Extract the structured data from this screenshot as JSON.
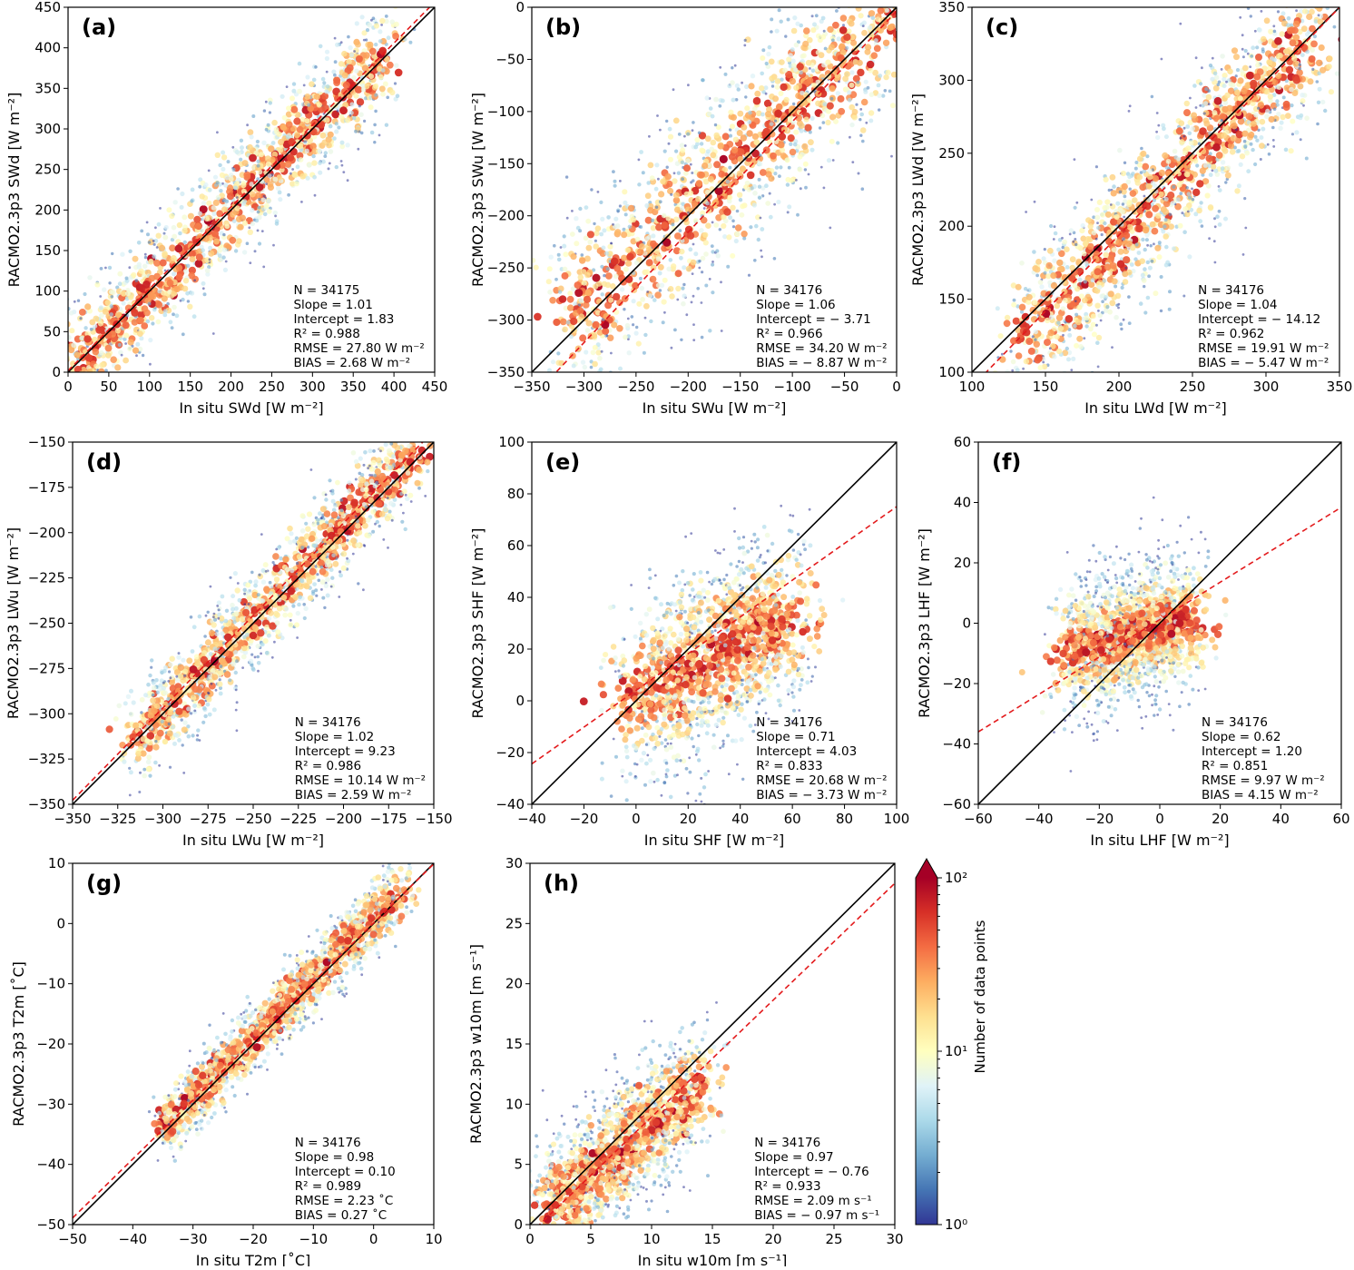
{
  "figure": {
    "colorbar": {
      "label": "Number of data points",
      "scale": "log",
      "min": 1,
      "max": 100,
      "tick_labels": [
        "10⁰",
        "10¹",
        "10²"
      ],
      "colormap_stops": [
        "#313695",
        "#4575b4",
        "#74add1",
        "#abd9e9",
        "#e0f3f8",
        "#ffffbf",
        "#fee090",
        "#fdae61",
        "#f46d43",
        "#d73027",
        "#a50026"
      ]
    },
    "colors": {
      "one_to_one": "#000000",
      "fit_line": "#e31a1c"
    }
  },
  "chart_data": [
    {
      "id": "a",
      "panel_label": "(a)",
      "type": "scatter",
      "xlabel": "In situ SWd [W m⁻²]",
      "ylabel": "RACMO2.3p3 SWd [W m⁻²]",
      "xlim": [
        0,
        450
      ],
      "ylim": [
        0,
        450
      ],
      "xticks": [
        0,
        50,
        100,
        150,
        200,
        250,
        300,
        350,
        400,
        450
      ],
      "yticks": [
        0,
        50,
        100,
        150,
        200,
        250,
        300,
        350,
        400,
        450
      ],
      "stats": {
        "n": 34175,
        "slope": 1.01,
        "intercept": 1.83,
        "r2": 0.988,
        "rmse": 27.8,
        "bias": 2.68
      },
      "stat_lines": [
        "N = 34175",
        "Slope = 1.01",
        "Intercept = 1.83",
        "R² = 0.988",
        "RMSE = 27.80 W m⁻²",
        "BIAS = 2.68 W m⁻²"
      ],
      "density": {
        "core": [
          [
            0,
            0
          ],
          [
            395,
            400
          ]
        ],
        "spread": 28
      }
    },
    {
      "id": "b",
      "panel_label": "(b)",
      "type": "scatter",
      "xlabel": "In situ SWu [W m⁻²]",
      "ylabel": "RACMO2.3p3 SWu [W m⁻²]",
      "xlim": [
        -350,
        0
      ],
      "ylim": [
        -350,
        0
      ],
      "xticks": [
        -350,
        -300,
        -250,
        -200,
        -150,
        -100,
        -50,
        0
      ],
      "yticks": [
        -350,
        -300,
        -250,
        -200,
        -150,
        -100,
        -50,
        0
      ],
      "stats": {
        "n": 34176,
        "slope": 1.06,
        "intercept": -3.71,
        "r2": 0.966,
        "rmse": 34.2,
        "bias": -8.87
      },
      "stat_lines": [
        "N = 34176",
        "Slope = 1.06",
        "Intercept = − 3.71",
        "R² = 0.966",
        "RMSE = 34.20 W m⁻²",
        "BIAS = − 8.87 W m⁻²"
      ],
      "density": {
        "core": [
          [
            -320,
            -310
          ],
          [
            0,
            0
          ]
        ],
        "spread": 34
      }
    },
    {
      "id": "c",
      "panel_label": "(c)",
      "type": "scatter",
      "xlabel": "In situ LWd [W m⁻²]",
      "ylabel": "RACMO2.3p3 LWd [W m⁻²]",
      "xlim": [
        100,
        350
      ],
      "ylim": [
        100,
        350
      ],
      "xticks": [
        100,
        150,
        200,
        250,
        300,
        350
      ],
      "yticks": [
        100,
        150,
        200,
        250,
        300,
        350
      ],
      "stats": {
        "n": 34176,
        "slope": 1.04,
        "intercept": -14.12,
        "r2": 0.962,
        "rmse": 19.91,
        "bias": -5.47
      },
      "stat_lines": [
        "N = 34176",
        "Slope = 1.04",
        "Intercept = − 14.12",
        "R² = 0.962",
        "RMSE = 19.91 W m⁻²",
        "BIAS = − 5.47 W m⁻²"
      ],
      "density": {
        "core": [
          [
            135,
            120
          ],
          [
            335,
            335
          ]
        ],
        "spread": 20
      }
    },
    {
      "id": "d",
      "panel_label": "(d)",
      "type": "scatter",
      "xlabel": "In situ LWu [W m⁻²]",
      "ylabel": "RACMO2.3p3 LWu [W m⁻²]",
      "xlim": [
        -350,
        -150
      ],
      "ylim": [
        -350,
        -150
      ],
      "xticks": [
        -350,
        -325,
        -300,
        -275,
        -250,
        -225,
        -200,
        -175,
        -150
      ],
      "yticks": [
        -350,
        -325,
        -300,
        -275,
        -250,
        -225,
        -200,
        -175,
        -150
      ],
      "stats": {
        "n": 34176,
        "slope": 1.02,
        "intercept": 9.23,
        "r2": 0.986,
        "rmse": 10.14,
        "bias": 2.59
      },
      "stat_lines": [
        "N = 34176",
        "Slope = 1.02",
        "Intercept = 9.23",
        "R² = 0.986",
        "RMSE = 10.14 W m⁻²",
        "BIAS = 2.59 W m⁻²"
      ],
      "density": {
        "core": [
          [
            -316,
            -316
          ],
          [
            -160,
            -155
          ]
        ],
        "spread": 10
      }
    },
    {
      "id": "e",
      "panel_label": "(e)",
      "type": "scatter",
      "xlabel": "In situ SHF [W m⁻²]",
      "ylabel": "RACMO2.3p3 SHF [W m⁻²]",
      "xlim": [
        -40,
        100
      ],
      "ylim": [
        -40,
        100
      ],
      "xticks": [
        -40,
        -20,
        0,
        20,
        40,
        60,
        80,
        100
      ],
      "yticks": [
        -40,
        -20,
        0,
        20,
        40,
        60,
        80,
        100
      ],
      "stats": {
        "n": 34176,
        "slope": 0.71,
        "intercept": 4.03,
        "r2": 0.833,
        "rmse": 20.68,
        "bias": -3.73
      },
      "stat_lines": [
        "N = 34176",
        "Slope = 0.71",
        "Intercept = 4.03",
        "R² = 0.833",
        "RMSE = 20.68 W m⁻²",
        "BIAS = − 3.73 W m⁻²"
      ],
      "density": {
        "core": [
          [
            0,
            0
          ],
          [
            60,
            35
          ]
        ],
        "spread": 14
      }
    },
    {
      "id": "f",
      "panel_label": "(f)",
      "type": "scatter",
      "xlabel": "In situ LHF [W m⁻²]",
      "ylabel": "RACMO2.3p3 LHF [W m⁻²]",
      "xlim": [
        -60,
        60
      ],
      "ylim": [
        -60,
        60
      ],
      "xticks": [
        -60,
        -40,
        -20,
        0,
        20,
        40,
        60
      ],
      "yticks": [
        -60,
        -40,
        -20,
        0,
        20,
        40,
        60
      ],
      "stats": {
        "n": 34176,
        "slope": 0.62,
        "intercept": 1.2,
        "r2": 0.851,
        "rmse": 9.97,
        "bias": 4.15
      },
      "stat_lines": [
        "N = 34176",
        "Slope = 0.62",
        "Intercept = 1.20",
        "R² = 0.851",
        "RMSE = 9.97 W m⁻²",
        "BIAS = 4.15 W m⁻²"
      ],
      "density": {
        "core": [
          [
            -30,
            -10
          ],
          [
            10,
            2
          ]
        ],
        "spread": 9
      }
    },
    {
      "id": "g",
      "panel_label": "(g)",
      "type": "scatter",
      "xlabel": "In situ T2m [˚C]",
      "ylabel": "RACMO2.3p3 T2m [˚C]",
      "xlim": [
        -50,
        10
      ],
      "ylim": [
        -50,
        10
      ],
      "xticks": [
        -50,
        -40,
        -30,
        -20,
        -10,
        0,
        10
      ],
      "yticks": [
        -50,
        -40,
        -30,
        -20,
        -10,
        0,
        10
      ],
      "stats": {
        "n": 34176,
        "slope": 0.98,
        "intercept": 0.1,
        "r2": 0.989,
        "rmse": 2.23,
        "bias": 0.27
      },
      "stat_lines": [
        "N = 34176",
        "Slope = 0.98",
        "Intercept = 0.10",
        "R² = 0.989",
        "RMSE = 2.23 ˚C",
        "BIAS = 0.27 ˚C"
      ],
      "density": {
        "core": [
          [
            -35,
            -34
          ],
          [
            5,
            6
          ]
        ],
        "spread": 2.2
      }
    },
    {
      "id": "h",
      "panel_label": "(h)",
      "type": "scatter",
      "xlabel": "In situ w10m [m s⁻¹]",
      "ylabel": "RACMO2.3p3 w10m [m s⁻¹]",
      "xlim": [
        0,
        30
      ],
      "ylim": [
        0,
        30
      ],
      "xticks": [
        0,
        5,
        10,
        15,
        20,
        25,
        30
      ],
      "yticks": [
        0,
        5,
        10,
        15,
        20,
        25,
        30
      ],
      "stats": {
        "n": 34176,
        "slope": 0.97,
        "intercept": -0.76,
        "r2": 0.933,
        "rmse": 2.09,
        "bias": -0.97
      },
      "stat_lines": [
        "N = 34176",
        "Slope = 0.97",
        "Intercept = − 0.76",
        "R² = 0.933",
        "RMSE = 2.09 m s⁻¹",
        "BIAS = − 0.97 m s⁻¹"
      ],
      "density": {
        "core": [
          [
            1,
            0.5
          ],
          [
            14,
            12
          ]
        ],
        "spread": 2.1
      }
    }
  ]
}
